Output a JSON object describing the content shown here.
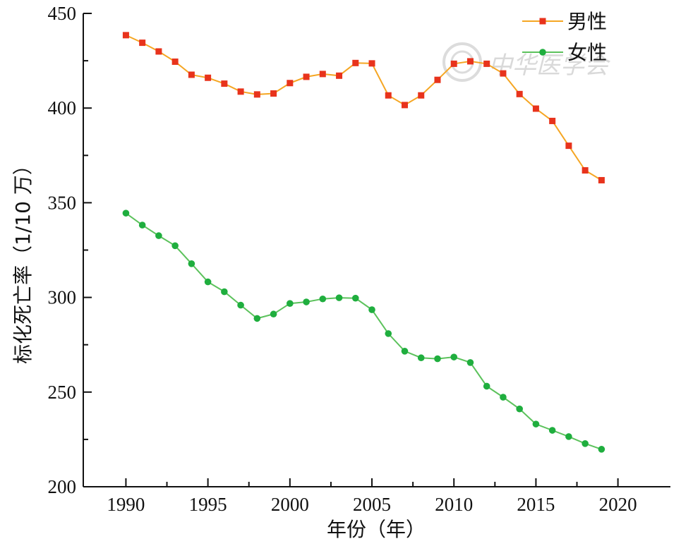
{
  "chart_data": {
    "type": "line",
    "title": "",
    "xlabel": "年份（年）",
    "ylabel": "标化死亡率（1/10 万）",
    "xlim": [
      1987.4,
      2023.2
    ],
    "ylim": [
      200,
      450
    ],
    "xticks": [
      1990,
      1995,
      2000,
      2005,
      2010,
      2015,
      2020
    ],
    "yticks": [
      200,
      250,
      300,
      350,
      400,
      450
    ],
    "legend": "top-right",
    "grid": false,
    "x": [
      1990,
      1991,
      1992,
      1993,
      1994,
      1995,
      1996,
      1997,
      1998,
      1999,
      2000,
      2001,
      2002,
      2003,
      2004,
      2005,
      2006,
      2007,
      2008,
      2009,
      2010,
      2011,
      2012,
      2013,
      2014,
      2015,
      2016,
      2017,
      2018,
      2019
    ],
    "series": [
      {
        "name": "男性",
        "color": "#f5a623",
        "marker_color": "#e8331c",
        "marker": "square",
        "values": [
          438.5,
          434.5,
          429.9,
          424.5,
          417.6,
          416.0,
          412.9,
          408.7,
          407.2,
          407.7,
          413.2,
          416.5,
          418.0,
          417.1,
          423.8,
          423.6,
          406.7,
          401.6,
          406.7,
          414.9,
          423.4,
          424.7,
          423.4,
          418.3,
          407.4,
          399.7,
          393.2,
          380.1,
          367.1,
          361.9
        ]
      },
      {
        "name": "女性",
        "color": "#5cc25c",
        "marker_color": "#1fae3e",
        "marker": "circle",
        "values": [
          344.5,
          338.2,
          332.6,
          327.3,
          317.8,
          308.2,
          303.0,
          295.9,
          288.9,
          291.2,
          296.8,
          297.6,
          299.2,
          299.8,
          299.6,
          293.5,
          280.9,
          271.6,
          268.1,
          267.6,
          268.5,
          265.6,
          253.1,
          247.3,
          241.1,
          233.1,
          229.8,
          226.5,
          222.8,
          219.8
        ]
      }
    ]
  },
  "watermark": {
    "text": "中华医学会",
    "color": "#d9d9d9"
  }
}
